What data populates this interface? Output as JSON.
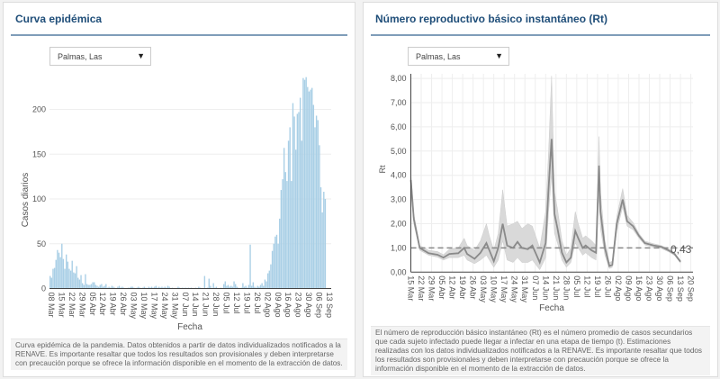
{
  "left_panel": {
    "title": "Curva epidémica",
    "dropdown_value": "Palmas, Las",
    "note": "Curva epidémica de la pandemia. Datos obtenidos a partir de datos individualizados notificados a la RENAVE. Es importante resaltar que todos los resultados son provisionales y deben interpretarse con precaución porque se ofrece la información disponible en el momento de la extracción de datos."
  },
  "right_panel": {
    "title": "Número reproductivo básico instantáneo (Rt)",
    "dropdown_value": "Palmas, Las",
    "note": "El número de reproducción básico instantáneo (Rt) es el número promedio de casos secundarios que cada sujeto infectado puede llegar a infectar en una etapa de tiempo (t). Estimaciones realizadas con los datos individualizados notificados a la RENAVE. Es importante resaltar que todos los resultados son provisionales y deben interpretarse con precaución porque se ofrece la información disponible en el momento de la extracción de datos."
  },
  "colors": {
    "bar": "#a9cfe6",
    "line": "#8a8a8a",
    "band": "#d9d9d9",
    "title": "#1f4e79"
  },
  "chart_data": [
    {
      "type": "bar",
      "title": "Curva epidémica",
      "xlabel": "Fecha",
      "ylabel": "Casos diarios",
      "ylim": [
        0,
        240
      ],
      "yticks": [
        "0",
        "50",
        "100",
        "150",
        "200"
      ],
      "ytick_values": [
        0,
        50,
        100,
        150,
        200
      ],
      "start_day_label": "08 Mar",
      "xticks": [
        "08 Mar",
        "15 Mar",
        "22 Mar",
        "29 Mar",
        "05 Abr",
        "12 Abr",
        "19 Abr",
        "26 Abr",
        "03 May",
        "10 May",
        "17 May",
        "24 May",
        "31 May",
        "07 Jun",
        "14 Jun",
        "21 Jun",
        "28 Jun",
        "05 Jul",
        "12 Jul",
        "19 Jul",
        "26 Jul",
        "02 Ago",
        "09 Ago",
        "16 Ago",
        "23 Ago",
        "30 Ago",
        "06 Sep",
        "13 Sep"
      ],
      "values": [
        14,
        12,
        22,
        23,
        32,
        43,
        40,
        35,
        50,
        33,
        22,
        38,
        30,
        22,
        20,
        31,
        18,
        17,
        25,
        12,
        10,
        15,
        6,
        4,
        16,
        5,
        4,
        4,
        5,
        7,
        7,
        4,
        3,
        2,
        4,
        5,
        2,
        3,
        5,
        1,
        2,
        1,
        3,
        2,
        1,
        0,
        2,
        3,
        1,
        2,
        1,
        0,
        0,
        1,
        1,
        2,
        2,
        1,
        0,
        1,
        2,
        1,
        0,
        1,
        2,
        1,
        0,
        2,
        1,
        2,
        1,
        2,
        3,
        1,
        2,
        1,
        2,
        1,
        2,
        1,
        3,
        2,
        0,
        1,
        0,
        0,
        0,
        2,
        1,
        0,
        1,
        0,
        1,
        0,
        1,
        0,
        1,
        0,
        0,
        1,
        0,
        2,
        1,
        0,
        0,
        14,
        0,
        1,
        11,
        3,
        0,
        6,
        1,
        2,
        0,
        0,
        1,
        0,
        5,
        8,
        3,
        4,
        2,
        3,
        2,
        8,
        5,
        2,
        1,
        0,
        1,
        6,
        2,
        3,
        1,
        4,
        49,
        3,
        7,
        2,
        1,
        3,
        2,
        4,
        6,
        3,
        10,
        8,
        17,
        20,
        27,
        42,
        50,
        58,
        60,
        50,
        78,
        110,
        122,
        157,
        130,
        120,
        165,
        180,
        120,
        207,
        192,
        155,
        195,
        197,
        213,
        165,
        235,
        233,
        236,
        225,
        220,
        222,
        224,
        205,
        180,
        193,
        188,
        160,
        113,
        85,
        108,
        100
      ]
    },
    {
      "type": "line",
      "title": "Número reproductivo básico instantáneo (Rt)",
      "xlabel": "Fecha",
      "ylabel": "Rt",
      "ylim": [
        0,
        8.2
      ],
      "yticks": [
        "0,00",
        "1,00",
        "2,00",
        "3,00",
        "4,00",
        "5,00",
        "6,00",
        "7,00",
        "8,00"
      ],
      "ytick_values": [
        0,
        1,
        2,
        3,
        4,
        5,
        6,
        7,
        8
      ],
      "reference_line": 1,
      "last_value_label": "0,43",
      "xticks": [
        "15 Mar",
        "22 Mar",
        "29 Mar",
        "05 Abr",
        "12 Abr",
        "19 Abr",
        "26 Abr",
        "03 May",
        "10 May",
        "17 May",
        "24 May",
        "31 May",
        "07 Jun",
        "14 Jun",
        "21 Jun",
        "28 Jun",
        "05 Jul",
        "12 Jul",
        "19 Jul",
        "26 Jul",
        "02 Ago",
        "09 Ago",
        "16 Ago",
        "23 Ago",
        "30 Ago",
        "06 Sep",
        "13 Sep",
        "20 Sep"
      ],
      "days_since_start": [
        0,
        2,
        6,
        12,
        18,
        22,
        26,
        32,
        36,
        38,
        43,
        47,
        51,
        53,
        56,
        59,
        62,
        65,
        69,
        72,
        75,
        79,
        82,
        87,
        91,
        93,
        95,
        97,
        99,
        102,
        105,
        108,
        111,
        113,
        116,
        118,
        122,
        125,
        127,
        128,
        131,
        134,
        136,
        139,
        143,
        146,
        150,
        154,
        158,
        164,
        169,
        174,
        178,
        182
      ],
      "rt": [
        3.8,
        2.2,
        1.0,
        0.78,
        0.72,
        0.6,
        0.75,
        0.78,
        1.0,
        0.75,
        0.55,
        0.8,
        1.2,
        0.9,
        0.45,
        1.0,
        2.0,
        1.1,
        1.0,
        1.25,
        1.0,
        0.95,
        1.1,
        0.4,
        1.2,
        3.5,
        5.5,
        2.4,
        1.8,
        0.8,
        0.4,
        0.6,
        1.7,
        1.4,
        1.0,
        1.1,
        0.9,
        0.8,
        4.4,
        2.5,
        1.0,
        0.25,
        0.3,
        2.0,
        3.0,
        2.1,
        1.9,
        1.5,
        1.2,
        1.1,
        1.05,
        0.9,
        0.75,
        0.43
      ],
      "ci_lower": [
        3.4,
        2.0,
        0.9,
        0.7,
        0.62,
        0.5,
        0.6,
        0.6,
        0.7,
        0.5,
        0.35,
        0.5,
        0.7,
        0.5,
        0.2,
        0.5,
        1.3,
        0.5,
        0.4,
        0.6,
        0.4,
        0.4,
        0.5,
        0.1,
        0.6,
        2.5,
        4.0,
        1.6,
        1.2,
        0.5,
        0.2,
        0.4,
        1.2,
        1.0,
        0.7,
        0.8,
        0.6,
        0.5,
        3.2,
        1.8,
        0.7,
        0.15,
        0.2,
        1.7,
        2.7,
        1.9,
        1.75,
        1.4,
        1.12,
        1.03,
        0.98,
        0.84,
        0.69,
        0.38
      ],
      "ci_upper": [
        4.1,
        2.4,
        1.1,
        0.9,
        0.85,
        0.72,
        0.95,
        1.0,
        1.4,
        1.1,
        0.9,
        1.3,
        2.0,
        1.5,
        0.9,
        1.6,
        3.4,
        1.9,
        2.0,
        2.1,
        1.8,
        2.0,
        1.9,
        1.0,
        2.5,
        5.0,
        8.1,
        3.3,
        2.6,
        1.3,
        0.7,
        1.0,
        2.5,
        2.0,
        1.4,
        1.5,
        1.3,
        1.1,
        5.6,
        3.3,
        1.3,
        0.4,
        0.45,
        2.3,
        3.45,
        2.35,
        2.05,
        1.6,
        1.28,
        1.17,
        1.1,
        0.96,
        0.81,
        0.48
      ]
    }
  ]
}
